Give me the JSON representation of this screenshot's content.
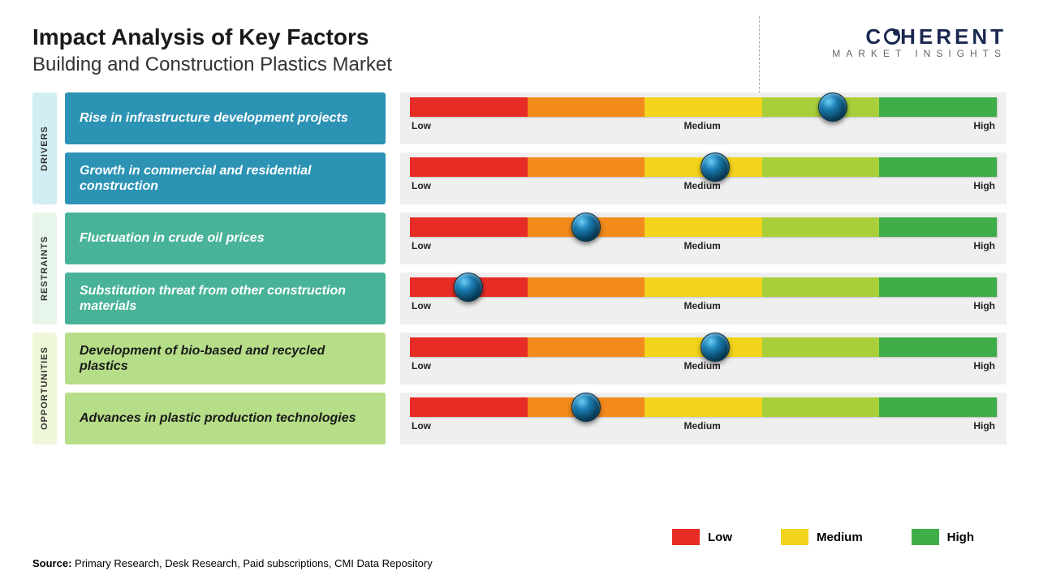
{
  "title": "Impact Analysis of Key Factors",
  "subtitle": "Building and Construction Plastics Market",
  "logo": {
    "main": "COHERENT",
    "sub": "MARKET INSIGHTS"
  },
  "scale_labels": {
    "low": "Low",
    "medium": "Medium",
    "high": "High"
  },
  "gradient_colors": [
    "#e72c25",
    "#f28a1c",
    "#f2d41c",
    "#a8cf3a",
    "#3fae49"
  ],
  "categories": [
    {
      "name": "DRIVERS",
      "tab_bg": "#d2eef5",
      "rows": [
        {
          "label": "Rise in infrastructure development projects",
          "label_bg": "#2c93b5",
          "label_color": "#ffffff",
          "knob_pct": 72
        },
        {
          "label": "Growth in commercial and residential construction",
          "label_bg": "#2c93b5",
          "label_color": "#ffffff",
          "knob_pct": 52
        }
      ]
    },
    {
      "name": "RESTRAINTS",
      "tab_bg": "#e8f5ea",
      "rows": [
        {
          "label": "Fluctuation in crude oil prices",
          "label_bg": "#48b398",
          "label_color": "#ffffff",
          "knob_pct": 30
        },
        {
          "label": "Substitution threat from other construction materials",
          "label_bg": "#48b398",
          "label_color": "#ffffff",
          "knob_pct": 10
        }
      ]
    },
    {
      "name": "OPPORTUNITIES",
      "tab_bg": "#eef7d8",
      "rows": [
        {
          "label": "Development of bio-based and recycled plastics",
          "label_bg": "#b6dd87",
          "label_color": "#1a1a1a",
          "knob_pct": 52
        },
        {
          "label": "Advances in plastic production technologies",
          "label_bg": "#b6dd87",
          "label_color": "#1a1a1a",
          "knob_pct": 30
        }
      ]
    }
  ],
  "legend": [
    {
      "label": "Low",
      "color": "#e72c25"
    },
    {
      "label": "Medium",
      "color": "#f2d41c"
    },
    {
      "label": "High",
      "color": "#3fae49"
    }
  ],
  "source": {
    "prefix": "Source:",
    "text": " Primary Research, Desk Research, Paid subscriptions, CMI Data Repository"
  }
}
